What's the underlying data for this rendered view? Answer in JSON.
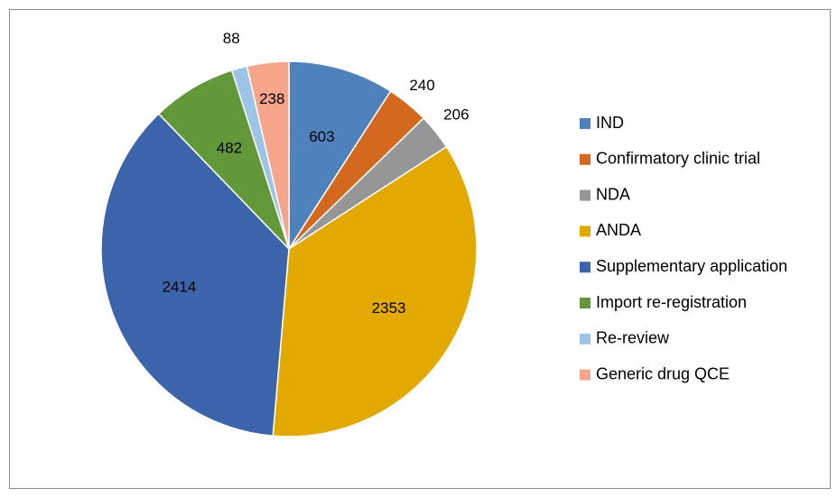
{
  "chart_data": {
    "type": "pie",
    "title": "",
    "legend_position": "right",
    "start_angle_deg": 0,
    "direction": "clockwise",
    "categories": [
      "IND",
      "Confirmatory clinic trial",
      "NDA",
      "ANDA",
      "Supplementary application",
      "Import re-registration",
      "Re-review",
      "Generic drug QCE"
    ],
    "values": [
      603,
      240,
      206,
      2353,
      2414,
      482,
      88,
      238
    ],
    "colors": [
      "#4f81bd",
      "#d2691e",
      "#969696",
      "#e2a900",
      "#3c64aa",
      "#62973a",
      "#9dc3e6",
      "#f4a58a"
    ],
    "data_labels": [
      "603",
      "240",
      "206",
      "2353",
      "2414",
      "482",
      "88",
      "238"
    ]
  }
}
